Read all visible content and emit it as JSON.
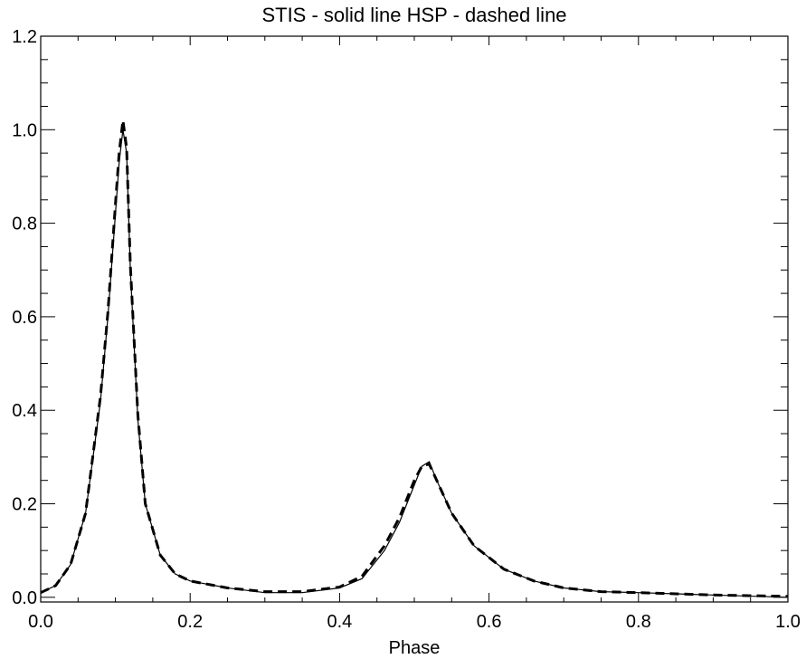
{
  "chart_data": {
    "type": "line",
    "title": "STIS - solid line    HSP - dashed line",
    "xlabel": "Phase",
    "ylabel": "",
    "xlim": [
      0.0,
      1.0
    ],
    "ylim": [
      -0.01,
      1.2
    ],
    "x_ticks": [
      "0.0",
      "0.2",
      "0.4",
      "0.6",
      "0.8",
      "1.0"
    ],
    "y_ticks": [
      "0.0",
      "0.2",
      "0.4",
      "0.6",
      "0.8",
      "1.0",
      "1.2"
    ],
    "x_tick_values": [
      0.0,
      0.2,
      0.4,
      0.6,
      0.8,
      1.0
    ],
    "y_tick_values": [
      0.0,
      0.2,
      0.4,
      0.6,
      0.8,
      1.0,
      1.2
    ],
    "grid": false,
    "series": [
      {
        "style": "solid",
        "x": [
          0.0,
          0.02,
          0.04,
          0.06,
          0.08,
          0.09,
          0.1,
          0.105,
          0.11,
          0.115,
          0.12,
          0.13,
          0.14,
          0.16,
          0.18,
          0.2,
          0.25,
          0.3,
          0.35,
          0.4,
          0.43,
          0.46,
          0.48,
          0.5,
          0.51,
          0.52,
          0.53,
          0.55,
          0.58,
          0.62,
          0.66,
          0.7,
          0.75,
          0.8,
          0.9,
          1.0
        ],
        "y": [
          0.01,
          0.025,
          0.07,
          0.18,
          0.42,
          0.6,
          0.82,
          0.93,
          1.0,
          0.95,
          0.7,
          0.38,
          0.2,
          0.09,
          0.05,
          0.035,
          0.02,
          0.01,
          0.01,
          0.02,
          0.04,
          0.1,
          0.16,
          0.24,
          0.28,
          0.29,
          0.25,
          0.18,
          0.11,
          0.06,
          0.035,
          0.02,
          0.012,
          0.01,
          0.005,
          0.0
        ]
      },
      {
        "style": "dashed",
        "x": [
          0.0,
          0.02,
          0.04,
          0.06,
          0.08,
          0.09,
          0.1,
          0.105,
          0.11,
          0.115,
          0.12,
          0.13,
          0.14,
          0.16,
          0.18,
          0.2,
          0.25,
          0.3,
          0.35,
          0.4,
          0.43,
          0.46,
          0.48,
          0.5,
          0.51,
          0.52,
          0.53,
          0.55,
          0.58,
          0.62,
          0.66,
          0.7,
          0.75,
          0.8,
          0.9,
          1.0
        ],
        "y": [
          0.01,
          0.025,
          0.07,
          0.18,
          0.43,
          0.61,
          0.84,
          0.95,
          1.02,
          0.96,
          0.71,
          0.39,
          0.2,
          0.09,
          0.05,
          0.035,
          0.02,
          0.012,
          0.012,
          0.022,
          0.045,
          0.11,
          0.17,
          0.25,
          0.28,
          0.285,
          0.25,
          0.18,
          0.11,
          0.06,
          0.035,
          0.02,
          0.012,
          0.01,
          0.005,
          0.002
        ]
      }
    ]
  }
}
